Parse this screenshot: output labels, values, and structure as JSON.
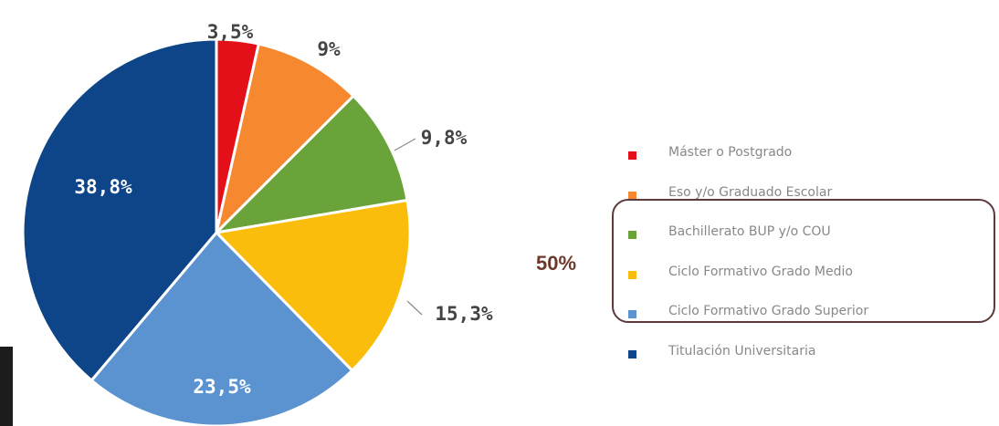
{
  "chart_data": {
    "type": "pie",
    "categories": [
      "Máster o Postgrado",
      "Eso y/o Graduado Escolar",
      "Bachillerato BUP y/o COU",
      "Ciclo Formativo Grado Medio",
      "Ciclo Formativo Grado Superior",
      "Titulación Universitaria"
    ],
    "values": [
      3.5,
      9,
      9.8,
      15.3,
      23.5,
      38.8
    ],
    "data_labels": [
      "3,5%",
      "9%",
      "9,8%",
      "15,3%",
      "23,5%",
      "38,8%"
    ],
    "colors": [
      "#e3101a",
      "#f6892f",
      "#6aa33a",
      "#fbbd0b",
      "#5b93d1",
      "#0d4588"
    ],
    "legend_position": "right"
  },
  "legend": {
    "items": [
      {
        "label": "Máster o Postgrado",
        "color": "#e3101a"
      },
      {
        "label": "Eso y/o Graduado Escolar",
        "color": "#f6892f"
      },
      {
        "label": "Bachillerato BUP y/o COU",
        "color": "#6aa33a"
      },
      {
        "label": "Ciclo Formativo Grado Medio",
        "color": "#fbbd0b"
      },
      {
        "label": "Ciclo Formativo Grado Superior",
        "color": "#5b93d1"
      },
      {
        "label": "Titulación Universitaria",
        "color": "#0d4588"
      }
    ]
  },
  "annotation": {
    "group_label": "50%",
    "group_color": "#5e3b3b"
  }
}
